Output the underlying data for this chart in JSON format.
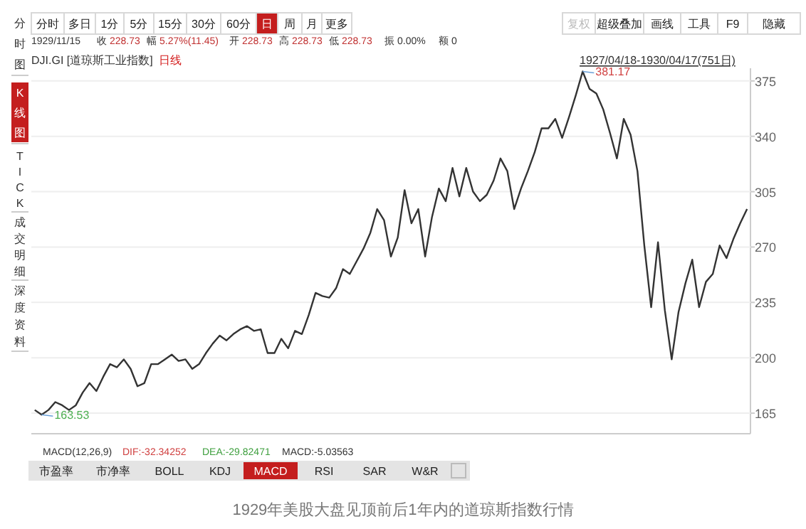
{
  "chart_data": {
    "type": "line",
    "title": "DJI.GI [道琼斯工业指数]",
    "subtitle": "日线",
    "categories": [
      null,
      null,
      null,
      null,
      null,
      null,
      null,
      null,
      null,
      null,
      null,
      null,
      null,
      null,
      null,
      null,
      null,
      null,
      null,
      null,
      null,
      null,
      null,
      null,
      null,
      null,
      null,
      null,
      null,
      null,
      null,
      null,
      null,
      null,
      null,
      null,
      null,
      null,
      null,
      null,
      null,
      null,
      null,
      null,
      null,
      null,
      null,
      null,
      null,
      null,
      null,
      null,
      null,
      null,
      null,
      null,
      null,
      null,
      null,
      null,
      null,
      null,
      null,
      null,
      null,
      null,
      null,
      null,
      null,
      null,
      null,
      null,
      null,
      null,
      null,
      null,
      null,
      null,
      null,
      null,
      null,
      null,
      null,
      null,
      null,
      null,
      null,
      null,
      null,
      null,
      null,
      null,
      null,
      null,
      null,
      null,
      null,
      null,
      null,
      null,
      null,
      null,
      null,
      null,
      null
    ],
    "series": [
      {
        "color": "#333333",
        "values": [
          167,
          164,
          167,
          172,
          170,
          167,
          170,
          178,
          184,
          179,
          188,
          196,
          194,
          199,
          193,
          182,
          184,
          196,
          196,
          199,
          202,
          198,
          199,
          193,
          196,
          203,
          209,
          214,
          211,
          215,
          218,
          220,
          217,
          218,
          203,
          203,
          212,
          206,
          217,
          215,
          227,
          241,
          239,
          238,
          244,
          256,
          253,
          261,
          269,
          279,
          294,
          287,
          264,
          276,
          306,
          285,
          294,
          264,
          289,
          307,
          299,
          320,
          302,
          320,
          305,
          299,
          303,
          312,
          326,
          318,
          294,
          307,
          318,
          330,
          345,
          345,
          351,
          339,
          352,
          366,
          381,
          370,
          367,
          357,
          342,
          326,
          351,
          341,
          318,
          271,
          232,
          273,
          230,
          199,
          229,
          247,
          262,
          232,
          248,
          253,
          271,
          263,
          275,
          285,
          294
        ]
      }
    ],
    "ylim": [
      152,
      383
    ],
    "yticks": [
      165,
      200,
      235,
      270,
      305,
      340,
      375
    ],
    "grid": "y",
    "tick_labels": "y",
    "annotations": [
      "163.53",
      "381.17",
      "分时",
      "多日",
      "1分",
      "5分",
      "15分",
      "30分",
      "60分",
      "日",
      "周",
      "月",
      "更多",
      "复权",
      "超级叠加",
      "画线",
      "工具",
      "F9",
      "隐藏",
      "1929/11/15",
      "收 228.73",
      "幅 5.27%(11.45)",
      "开 228.73",
      "高 228.73",
      "低 228.73",
      "振 0.00%",
      "额 0",
      "1927/04/18-1930/04/17(751日)",
      "分时图",
      "K线图",
      "TICK",
      "成交明细",
      "深度资料",
      "MACD(12,26,9)",
      "DIF:-32.34252",
      "DEA:-29.82471",
      "MACD:-5.03563",
      "市盈率",
      "市净率",
      "BOLL",
      "KDJ",
      "MACD",
      "RSI",
      "SAR",
      "W&R",
      "1929年美股大盘见顶前后1年内的道琼斯指数行情"
    ]
  }
}
